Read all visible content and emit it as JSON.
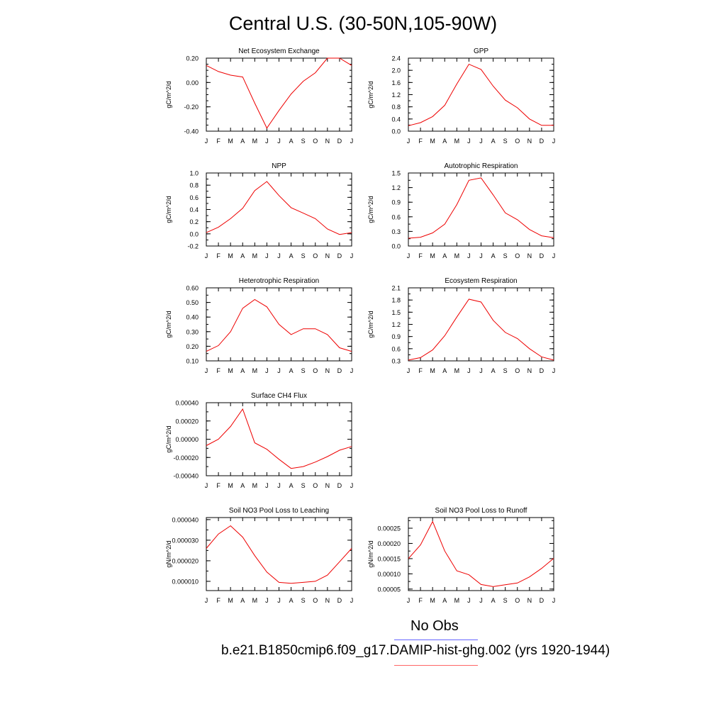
{
  "title": "Central U.S. (30-50N,105-90W)",
  "months": [
    "J",
    "F",
    "M",
    "A",
    "M",
    "J",
    "J",
    "A",
    "S",
    "O",
    "N",
    "D",
    "J"
  ],
  "legend": {
    "obs_label": "No Obs",
    "obs_color": "#6666ff",
    "case_label": "b.e21.B1850cmip6.f09_g17.DAMIP-hist-ghg.002 (yrs 1920-1944)",
    "case_color": "#ff6666"
  },
  "line_color": "#ee0000",
  "chart_data": [
    {
      "type": "line",
      "title": "Net Ecosystem Exchange",
      "ylabel": "gC/m^2/d",
      "ylim": [
        -0.4,
        0.2
      ],
      "yticks": [
        -0.4,
        -0.2,
        0.0,
        0.2
      ],
      "ytick_labels": [
        "-0.40",
        "-0.20",
        "0.00",
        "0.20"
      ],
      "yminor": 0.05,
      "values": [
        0.14,
        0.09,
        0.06,
        0.045,
        -0.17,
        -0.375,
        -0.23,
        -0.095,
        0.01,
        0.08,
        0.2,
        0.2,
        0.14
      ]
    },
    {
      "type": "line",
      "title": "GPP",
      "ylabel": "gC/m^2/d",
      "ylim": [
        0.0,
        2.4
      ],
      "yticks": [
        0.0,
        0.4,
        0.8,
        1.2,
        1.6,
        2.0,
        2.4
      ],
      "ytick_labels": [
        "0.0",
        "0.4",
        "0.8",
        "1.2",
        "1.6",
        "2.0",
        "2.4"
      ],
      "yminor": 0.2,
      "values": [
        0.18,
        0.28,
        0.48,
        0.85,
        1.55,
        2.2,
        2.03,
        1.48,
        1.02,
        0.77,
        0.4,
        0.19,
        0.19
      ]
    },
    {
      "type": "line",
      "title": "NPP",
      "ylabel": "gC/m^2/d",
      "ylim": [
        -0.2,
        1.0
      ],
      "yticks": [
        -0.2,
        0.0,
        0.2,
        0.4,
        0.6,
        0.8,
        1.0
      ],
      "ytick_labels": [
        "-0.2",
        "0.0",
        "0.2",
        "0.4",
        "0.6",
        "0.8",
        "1.0"
      ],
      "yminor": 0.1,
      "values": [
        0.02,
        0.11,
        0.25,
        0.42,
        0.71,
        0.86,
        0.63,
        0.43,
        0.34,
        0.25,
        0.08,
        -0.01,
        0.02
      ]
    },
    {
      "type": "line",
      "title": "Autotrophic Respiration",
      "ylabel": "gC/m^2/d",
      "ylim": [
        0.0,
        1.5
      ],
      "yticks": [
        0.0,
        0.3,
        0.6,
        0.9,
        1.2,
        1.5
      ],
      "ytick_labels": [
        "0.0",
        "0.3",
        "0.6",
        "0.9",
        "1.2",
        "1.5"
      ],
      "yminor": 0.15,
      "values": [
        0.16,
        0.18,
        0.27,
        0.45,
        0.85,
        1.35,
        1.4,
        1.05,
        0.68,
        0.54,
        0.34,
        0.21,
        0.17
      ]
    },
    {
      "type": "line",
      "title": "Heterotrophic Respiration",
      "ylabel": "gC/m^2/d",
      "ylim": [
        0.1,
        0.6
      ],
      "yticks": [
        0.1,
        0.2,
        0.3,
        0.4,
        0.5,
        0.6
      ],
      "ytick_labels": [
        "0.10",
        "0.20",
        "0.30",
        "0.40",
        "0.50",
        "0.60"
      ],
      "yminor": 0.05,
      "values": [
        0.165,
        0.205,
        0.3,
        0.46,
        0.52,
        0.47,
        0.35,
        0.28,
        0.32,
        0.32,
        0.28,
        0.19,
        0.165
      ]
    },
    {
      "type": "line",
      "title": "Ecosystem Respiration",
      "ylabel": "gC/m^2/d",
      "ylim": [
        0.3,
        2.1
      ],
      "yticks": [
        0.3,
        0.6,
        0.9,
        1.2,
        1.5,
        1.8,
        2.1
      ],
      "ytick_labels": [
        "0.3",
        "0.6",
        "0.9",
        "1.2",
        "1.5",
        "1.8",
        "2.1"
      ],
      "yminor": 0.15,
      "values": [
        0.32,
        0.38,
        0.57,
        0.92,
        1.38,
        1.82,
        1.75,
        1.3,
        1.0,
        0.85,
        0.6,
        0.4,
        0.32
      ]
    },
    {
      "type": "line",
      "title": "Surface CH4 Flux",
      "ylabel": "gC/m^2/d",
      "ylim": [
        -0.0004,
        0.0004
      ],
      "yticks": [
        -0.0004,
        -0.0002,
        0.0,
        0.0002,
        0.0004
      ],
      "ytick_labels": [
        "-0.00040",
        "-0.00020",
        "0.00000",
        "0.00020",
        "0.00040"
      ],
      "yminor": 0.0001,
      "values": [
        -7e-05,
        0.0,
        0.00014,
        0.00033,
        -4e-05,
        -0.00011,
        -0.00022,
        -0.00032,
        -0.0003,
        -0.00025,
        -0.00019,
        -0.00012,
        -8e-05
      ]
    },
    {
      "type": "line",
      "title": "Soil NO3 Pool Loss to Leaching",
      "ylabel": "gN/m^2/d",
      "ylim": [
        5.5e-06,
        4.1e-05
      ],
      "yticks": [
        1e-05,
        2e-05,
        3e-05,
        4e-05
      ],
      "ytick_labels": [
        "0.000010",
        "0.000020",
        "0.000030",
        "0.000040"
      ],
      "yminor": 5e-06,
      "values": [
        2.6e-05,
        3.3e-05,
        3.7e-05,
        3.15e-05,
        2.25e-05,
        1.45e-05,
        9.5e-06,
        9e-06,
        9.5e-06,
        1e-05,
        1.3e-05,
        1.95e-05,
        2.6e-05
      ]
    },
    {
      "type": "line",
      "title": "Soil NO3 Pool Loss to Runoff",
      "ylabel": "gN/m^2/d",
      "ylim": [
        4.5e-05,
        0.000285
      ],
      "yticks": [
        5e-05,
        0.0001,
        0.00015,
        0.0002,
        0.00025
      ],
      "ytick_labels": [
        "0.00005",
        "0.00010",
        "0.00015",
        "0.00020",
        "0.00025"
      ],
      "yminor": 2.5e-05,
      "values": [
        0.00015,
        0.000195,
        0.000272,
        0.000175,
        0.00011,
        9.7e-05,
        6.5e-05,
        5.8e-05,
        6.4e-05,
        7e-05,
        9e-05,
        0.000118,
        0.000151
      ]
    }
  ]
}
